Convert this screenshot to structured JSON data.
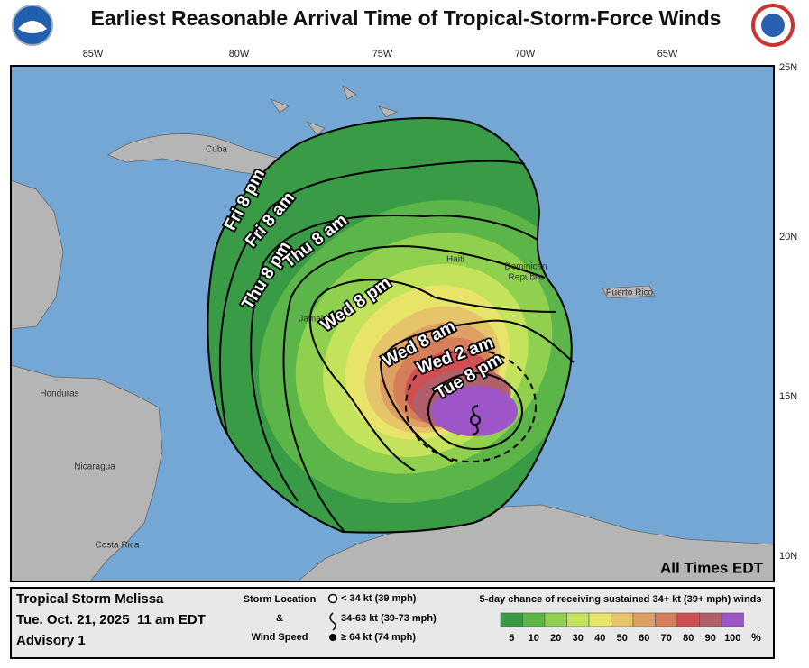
{
  "header": {
    "title": "Earliest Reasonable Arrival Time of Tropical-Storm-Force Winds"
  },
  "map": {
    "longitudes": [
      "85W",
      "80W",
      "75W",
      "70W",
      "65W"
    ],
    "latitudes": [
      "25N",
      "20N",
      "15N",
      "10N"
    ],
    "places": [
      "Cuba",
      "Haiti",
      "Dominican",
      "Republic",
      "Puerto Rico",
      "Jamaica",
      "Honduras",
      "Nicaragua",
      "Costa Rica"
    ],
    "contours": [
      "Fri 8 pm",
      "Fri 8 am",
      "Thu 8 pm",
      "Thu 8 am",
      "Wed 8 pm",
      "Wed 8 am",
      "Wed 2 am",
      "Tue 8 pm"
    ],
    "note": "All Times EDT"
  },
  "legend": {
    "storm": "Tropical Storm Melissa",
    "issued": "Tue. Oct. 21, 2025  11 am EDT",
    "advisory": "Advisory 1",
    "location_title": "Storm Location",
    "amp": "&",
    "wind_title": "Wind Speed",
    "symbols": [
      "< 34 kt (39 mph)",
      "34-63 kt (39-73 mph)",
      "≥ 64 kt (74 mph)"
    ],
    "scale_title": "5-day chance of receiving sustained 34+ kt (39+ mph) winds",
    "scale": [
      5,
      10,
      20,
      30,
      40,
      50,
      60,
      70,
      80,
      90,
      100
    ],
    "colors": [
      "#3a9b47",
      "#5cb548",
      "#8fd04e",
      "#c3e35c",
      "#e8e46a",
      "#e6c46a",
      "#dea062",
      "#d67e5a",
      "#cf4f52",
      "#b0606a",
      "#9d55c8"
    ],
    "unit": "%"
  }
}
